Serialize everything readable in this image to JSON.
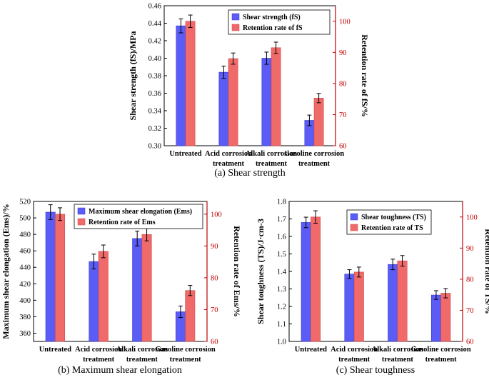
{
  "colors": {
    "blue": "#5b5bf5",
    "red": "#f06a6a",
    "right_axis": "#c00000",
    "axis": "#000000"
  },
  "chart_data": [
    {
      "id": "a",
      "type": "bar",
      "caption": "(a) Shear strength",
      "categories": [
        [
          "Untreated"
        ],
        [
          "Acid corrosion",
          "treatment"
        ],
        [
          "Alkali corrosion",
          "treatment"
        ],
        [
          "Gasoline corrosion",
          "treatment"
        ]
      ],
      "ylabel": "Shear strength (fS)/MPa",
      "ylabel_right": "Retention rate of fS/%",
      "ylim": [
        0.3,
        0.46
      ],
      "yticks": [
        "0.30",
        "0.32",
        "0.34",
        "0.36",
        "0.38",
        "0.40",
        "0.42",
        "0.44",
        "0.46"
      ],
      "ylim_right": [
        60,
        105
      ],
      "yticks_right": [
        "60",
        "70",
        "80",
        "90",
        "100"
      ],
      "legend": [
        "Shear strength (fS)",
        "Retention rate of fS"
      ],
      "series": [
        {
          "name": "Shear strength (fS)",
          "axis": "left",
          "values": [
            0.437,
            0.384,
            0.4,
            0.329
          ],
          "errors": [
            0.008,
            0.007,
            0.007,
            0.006
          ]
        },
        {
          "name": "Retention rate of fS",
          "axis": "right",
          "values": [
            100,
            88.0,
            91.5,
            75.3
          ],
          "errors": [
            2.0,
            1.8,
            1.8,
            1.5
          ]
        }
      ]
    },
    {
      "id": "b",
      "type": "bar",
      "caption": "(b) Maximum shear elongation",
      "categories": [
        [
          "Untreated"
        ],
        [
          "Acid corrosion",
          "treatment"
        ],
        [
          "Alkali corrosion",
          "treatment"
        ],
        [
          "Gasoline corrosion",
          "treatment"
        ]
      ],
      "ylabel": "Maximum shear elongation (Ems)/%",
      "ylabel_right": "Retention rate of Ems/%",
      "ylim": [
        350,
        520
      ],
      "yticks": [
        "360",
        "380",
        "400",
        "420",
        "440",
        "460",
        "480",
        "500",
        "520"
      ],
      "ylim_right": [
        60,
        104
      ],
      "yticks_right": [
        "60",
        "70",
        "80",
        "90",
        "100"
      ],
      "legend": [
        "Maximum shear elongation (Ems)",
        "Retention rate of Ems"
      ],
      "series": [
        {
          "name": "Maximum shear elongation (Ems)",
          "axis": "left",
          "values": [
            507,
            447,
            475,
            386
          ],
          "errors": [
            9,
            9,
            9,
            7
          ]
        },
        {
          "name": "Retention rate of Ems",
          "axis": "right",
          "values": [
            100,
            88.3,
            93.6,
            76.0
          ],
          "errors": [
            2.0,
            2.0,
            2.0,
            1.6
          ]
        }
      ]
    },
    {
      "id": "c",
      "type": "bar",
      "caption": "(c) Shear toughness",
      "categories": [
        [
          "Untreated"
        ],
        [
          "Acid corrosion",
          "treatment"
        ],
        [
          "Alkali corrosion",
          "treatment"
        ],
        [
          "Gasoline corrosion",
          "treatment"
        ]
      ],
      "ylabel": "Shear toughness (TS)/J·cm-3",
      "ylabel_right": "Retention rate of TS/%",
      "ylim": [
        1.0,
        1.8
      ],
      "yticks": [
        "1.0",
        "1.1",
        "1.2",
        "1.3",
        "1.4",
        "1.5",
        "1.6",
        "1.7",
        "1.8"
      ],
      "ylim_right": [
        60,
        105
      ],
      "yticks_right": [
        "60",
        "70",
        "80",
        "90",
        "100"
      ],
      "legend": [
        "Shear toughness (TS)",
        "Retention rate of TS"
      ],
      "series": [
        {
          "name": "Shear toughness (TS)",
          "axis": "left",
          "values": [
            1.68,
            1.385,
            1.44,
            1.265
          ],
          "errors": [
            0.03,
            0.025,
            0.03,
            0.025
          ]
        },
        {
          "name": "Retention rate of TS",
          "axis": "right",
          "values": [
            100,
            82.3,
            85.9,
            75.5
          ],
          "errors": [
            2.0,
            1.6,
            1.7,
            1.5
          ]
        }
      ]
    }
  ]
}
